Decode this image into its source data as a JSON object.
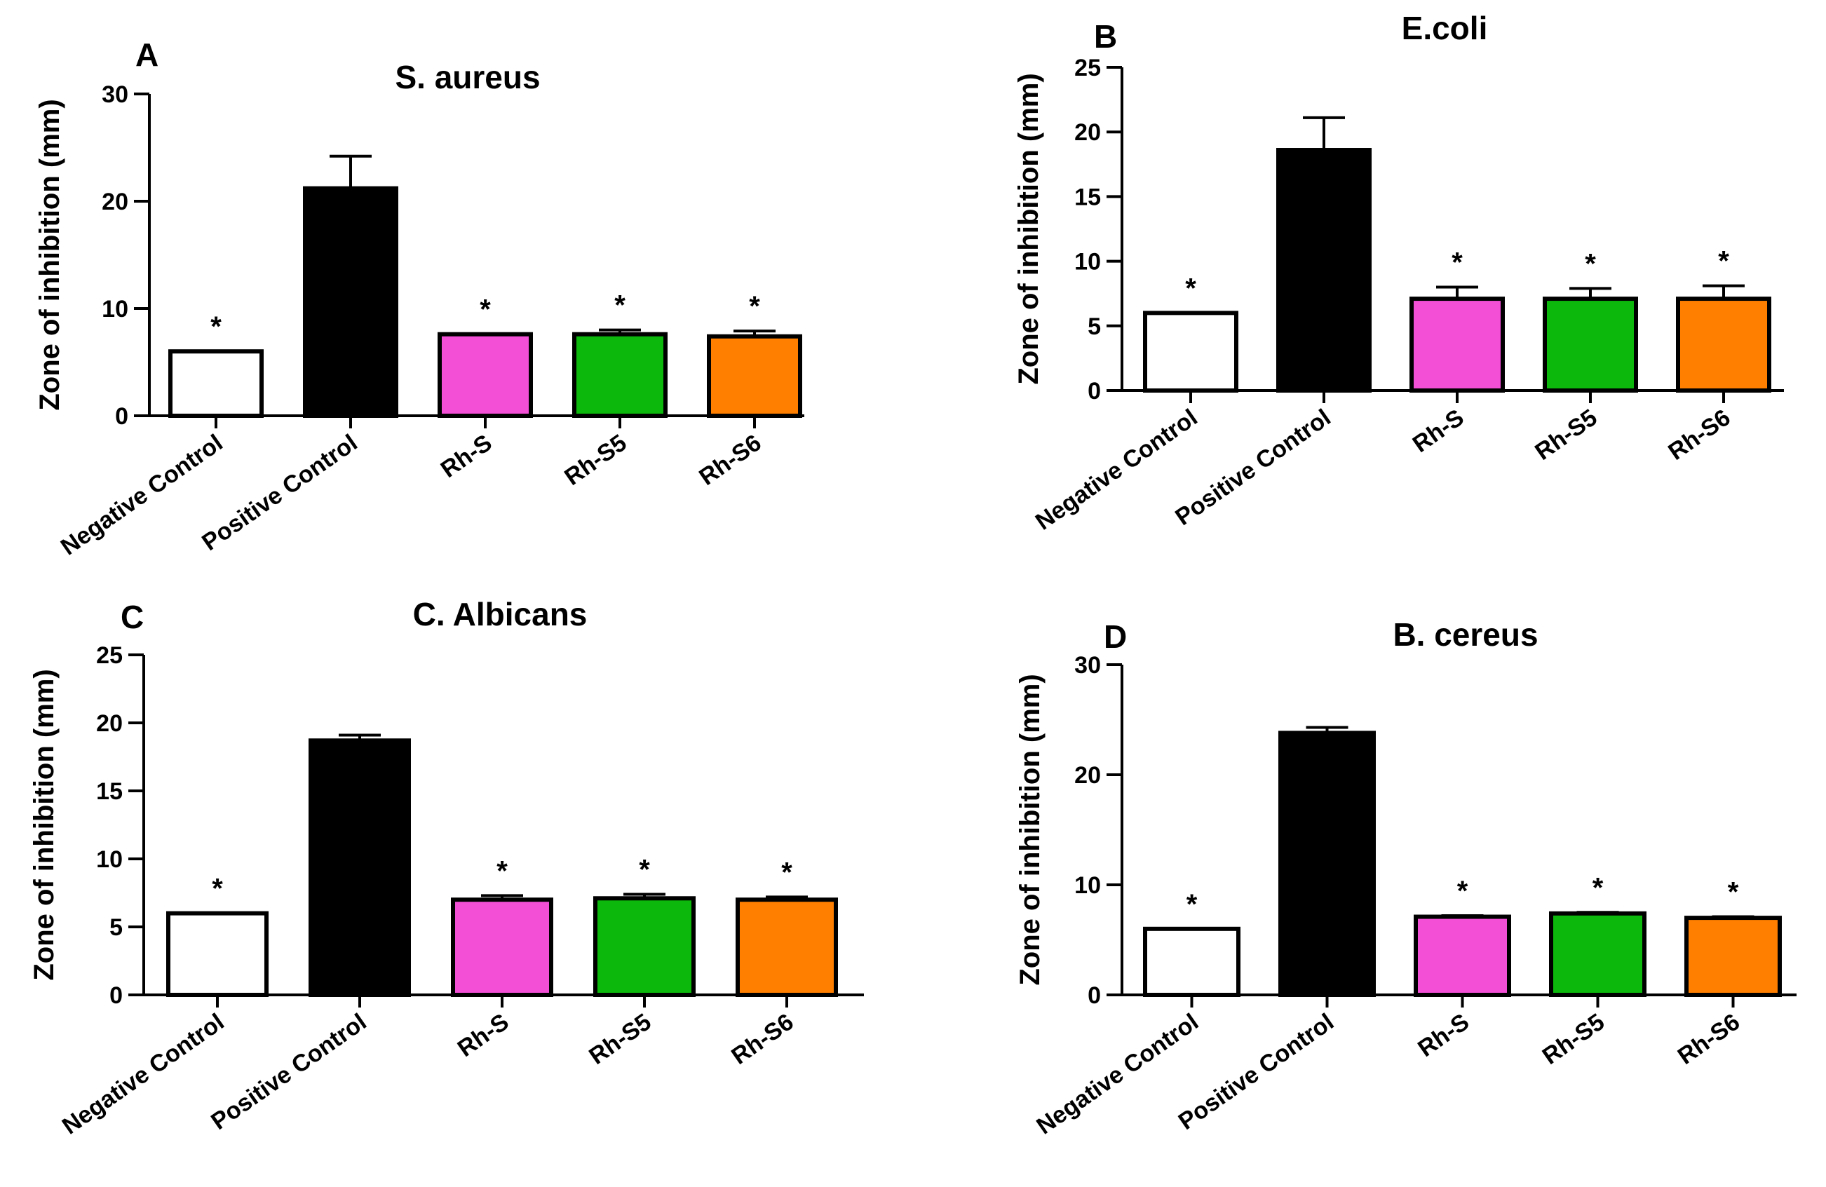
{
  "figure": {
    "background": "#ffffff"
  },
  "chart_data": [
    {
      "type": "bar",
      "panel": "A",
      "title": "S. aureus",
      "ylabel": "Zone of inhibition (mm)",
      "xlabel": "",
      "ylim": [
        0,
        30
      ],
      "yticks": [
        0,
        10,
        20,
        30
      ],
      "categories": [
        "Negative Control",
        "Positive Control",
        "Rh-S",
        "Rh-S5",
        "Rh-S6"
      ],
      "values": [
        6,
        21.2,
        7.6,
        7.6,
        7.4
      ],
      "errors": [
        0,
        3,
        0,
        0.4,
        0.5
      ],
      "annotations": [
        "*",
        "",
        "*",
        "*",
        "*"
      ],
      "colors": [
        "#ffffff",
        "#000000",
        "#f24fd6",
        "#0cb80c",
        "#ff7f00"
      ],
      "grid": false
    },
    {
      "type": "bar",
      "panel": "B",
      "title": "E.coli",
      "ylabel": "Zone of inhibition (mm)",
      "xlabel": "",
      "ylim": [
        0,
        25
      ],
      "yticks": [
        0,
        5,
        10,
        15,
        20,
        25
      ],
      "categories": [
        "Negative Control",
        "Positive Control",
        "Rh-S",
        "Rh-S5",
        "Rh-S6"
      ],
      "values": [
        6,
        18.6,
        7.1,
        7.1,
        7.1
      ],
      "errors": [
        0,
        2.5,
        0.9,
        0.8,
        1
      ],
      "annotations": [
        "*",
        "",
        "*",
        "*",
        "*"
      ],
      "colors": [
        "#ffffff",
        "#000000",
        "#f24fd6",
        "#0cb80c",
        "#ff7f00"
      ],
      "grid": false
    },
    {
      "type": "bar",
      "panel": "C",
      "title": "C. Albicans",
      "ylabel": "Zone of inhibition (mm)",
      "xlabel": "",
      "ylim": [
        0,
        25
      ],
      "yticks": [
        0,
        5,
        10,
        15,
        20,
        25
      ],
      "categories": [
        "Negative Control",
        "Positive Control",
        "Rh-S",
        "Rh-S5",
        "Rh-S6"
      ],
      "values": [
        6,
        18.7,
        7,
        7.1,
        7
      ],
      "errors": [
        0,
        0.4,
        0.3,
        0.3,
        0.2
      ],
      "annotations": [
        "*",
        "",
        "*",
        "*",
        "*"
      ],
      "colors": [
        "#ffffff",
        "#000000",
        "#f24fd6",
        "#0cb80c",
        "#ff7f00"
      ],
      "grid": false
    },
    {
      "type": "bar",
      "panel": "D",
      "title": "B. cereus",
      "ylabel": "Zone of inhibition (mm)",
      "xlabel": "",
      "ylim": [
        0,
        30
      ],
      "yticks": [
        0,
        10,
        20,
        30
      ],
      "categories": [
        "Negative Control",
        "Positive Control",
        "Rh-S",
        "Rh-S5",
        "Rh-S6"
      ],
      "values": [
        6,
        23.8,
        7.1,
        7.4,
        7
      ],
      "errors": [
        0,
        0.5,
        0.1,
        0.1,
        0.1
      ],
      "annotations": [
        "*",
        "",
        "*",
        "*",
        "*"
      ],
      "colors": [
        "#ffffff",
        "#000000",
        "#f24fd6",
        "#0cb80c",
        "#ff7f00"
      ],
      "grid": false
    }
  ]
}
